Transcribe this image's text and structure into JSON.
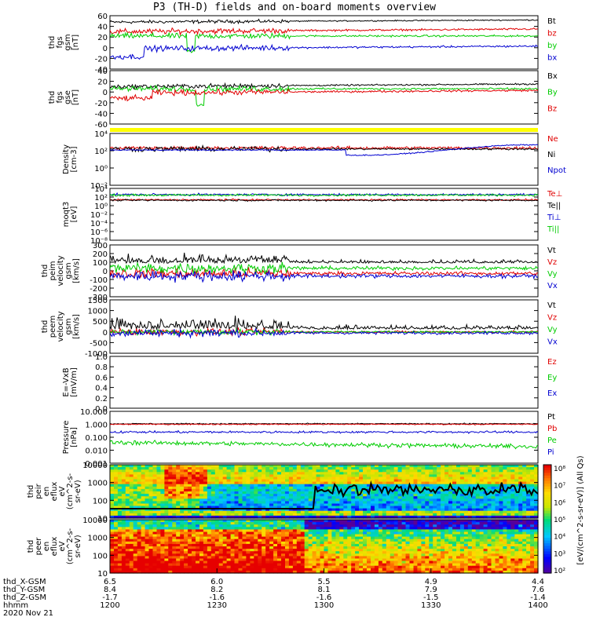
{
  "title": "P3 (TH-D) fields and on-board moments overview",
  "colors": {
    "black": "#000000",
    "red": "#e00000",
    "green": "#00cc00",
    "blue": "#0000d0",
    "yellow": "#ffff00"
  },
  "chart_data": [
    {
      "id": "fgs-gsm",
      "type": "line",
      "ylabel": [
        "thd",
        "fgs",
        "gsm",
        "[nT]"
      ],
      "ylim": [
        -40,
        60
      ],
      "yticks": [
        "60",
        "40",
        "20",
        "0",
        "-20",
        "-40"
      ],
      "series": [
        {
          "name": "Bt",
          "color": "black"
        },
        {
          "name": "bz",
          "color": "red"
        },
        {
          "name": "by",
          "color": "green"
        },
        {
          "name": "bx",
          "color": "blue"
        }
      ]
    },
    {
      "id": "fgs-gse",
      "type": "line",
      "ylabel": [
        "thd",
        "fgs",
        "gse",
        "[nT]"
      ],
      "ylim": [
        -60,
        40
      ],
      "yticks": [
        "40",
        "20",
        "0",
        "-20",
        "-40",
        "-60"
      ],
      "series": [
        {
          "name": "Bx",
          "color": "black"
        },
        {
          "name": "By",
          "color": "green"
        },
        {
          "name": "Bz",
          "color": "red"
        }
      ]
    },
    {
      "id": "mode-bar",
      "type": "bar",
      "ylabel": [],
      "color": "yellow"
    },
    {
      "id": "density",
      "type": "line",
      "ylabel": [
        "Density",
        "[cm-3]"
      ],
      "scale": "log",
      "yticks": [
        "10⁴",
        "10²",
        "10⁰",
        "10⁻²"
      ],
      "series": [
        {
          "name": "Ne",
          "color": "red"
        },
        {
          "name": "Ni",
          "color": "black"
        },
        {
          "name": "Npot",
          "color": "blue"
        }
      ]
    },
    {
      "id": "temperature",
      "type": "line",
      "ylabel": [
        "moqt3",
        "[eV]"
      ],
      "scale": "log",
      "yticks": [
        "10⁴",
        "10²",
        "10⁰",
        "10⁻²",
        "10⁻⁴",
        "10⁻⁶",
        "10⁻⁸"
      ],
      "series": [
        {
          "name": "Te⊥",
          "color": "red"
        },
        {
          "name": "Te||",
          "color": "black"
        },
        {
          "name": "Ti⊥",
          "color": "blue"
        },
        {
          "name": "Ti||",
          "color": "green"
        }
      ]
    },
    {
      "id": "ion-velocity",
      "type": "line",
      "ylabel": [
        "thd",
        "peim",
        "velocity",
        "gsm",
        "[km/s]"
      ],
      "ylim": [
        -300,
        300
      ],
      "yticks": [
        "300",
        "200",
        "100",
        "0",
        "-100",
        "-200",
        "-300"
      ],
      "series": [
        {
          "name": "Vt",
          "color": "black"
        },
        {
          "name": "Vz",
          "color": "red"
        },
        {
          "name": "Vy",
          "color": "green"
        },
        {
          "name": "Vx",
          "color": "blue"
        }
      ]
    },
    {
      "id": "electron-velocity",
      "type": "line",
      "ylabel": [
        "thd",
        "peem",
        "velocity",
        "gsm",
        "[km/s]"
      ],
      "ylim": [
        -1000,
        1500
      ],
      "yticks": [
        "1500",
        "1000",
        "500",
        "0",
        "-500",
        "-1000"
      ],
      "series": [
        {
          "name": "Vt",
          "color": "black"
        },
        {
          "name": "Vz",
          "color": "red"
        },
        {
          "name": "Vy",
          "color": "green"
        },
        {
          "name": "Vx",
          "color": "blue"
        }
      ]
    },
    {
      "id": "e-field",
      "type": "line",
      "ylabel": [
        "E=-VxB",
        "[mV/m]"
      ],
      "ylim": [
        0,
        1
      ],
      "yticks": [
        "1.0",
        "0.8",
        "0.6",
        "0.4",
        "0.2",
        "0.0"
      ],
      "series": [
        {
          "name": "Ez",
          "color": "red"
        },
        {
          "name": "Ey",
          "color": "green"
        },
        {
          "name": "Ex",
          "color": "blue"
        }
      ]
    },
    {
      "id": "pressure",
      "type": "line",
      "ylabel": [
        "Pressure",
        "[nPa]"
      ],
      "scale": "log",
      "yticks": [
        "10.000",
        "1.000",
        "0.100",
        "0.010",
        "0.001"
      ],
      "series": [
        {
          "name": "Pt",
          "color": "black"
        },
        {
          "name": "Pb",
          "color": "red"
        },
        {
          "name": "Pe",
          "color": "green"
        },
        {
          "name": "Pi",
          "color": "blue"
        }
      ]
    },
    {
      "id": "ion-spectrogram",
      "type": "heatmap",
      "ylabel": [
        "thd",
        "peir",
        "en",
        "eflux",
        "eV",
        "(cm^2-s-",
        "sr-eV)"
      ],
      "yticks": [
        "10000",
        "1000",
        "100",
        "10"
      ]
    },
    {
      "id": "electron-spectrogram",
      "type": "heatmap",
      "ylabel": [
        "thd",
        "peer",
        "en",
        "eflux",
        "eV",
        "(cm^2-s-",
        "sr-eV)"
      ],
      "yticks": [
        "10000",
        "1000",
        "100",
        "10"
      ]
    }
  ],
  "colorbar": {
    "ticks": [
      "10⁸",
      "10⁷",
      "10⁶",
      "10⁵",
      "10⁴",
      "10³",
      "10²"
    ],
    "label": "[eV/(cm^2-s-sr-eV)] (All Qs)"
  },
  "xaxis": {
    "ticks": [
      "1200",
      "1230",
      "1300",
      "1330",
      "1400"
    ],
    "rows": [
      {
        "label": "thd_X-GSM",
        "values": [
          "6.5",
          "6.0",
          "5.5",
          "4.9",
          "4.4"
        ]
      },
      {
        "label": "thd_Y-GSM",
        "values": [
          "8.4",
          "8.2",
          "8.1",
          "7.9",
          "7.6"
        ]
      },
      {
        "label": "thd_Z-GSM",
        "values": [
          "-1.7",
          "-1.6",
          "-1.6",
          "-1.5",
          "-1.4"
        ]
      },
      {
        "label": "hhmm",
        "values": [
          "1200",
          "1230",
          "1300",
          "1330",
          "1400"
        ]
      }
    ],
    "date": "2020 Nov 21"
  }
}
